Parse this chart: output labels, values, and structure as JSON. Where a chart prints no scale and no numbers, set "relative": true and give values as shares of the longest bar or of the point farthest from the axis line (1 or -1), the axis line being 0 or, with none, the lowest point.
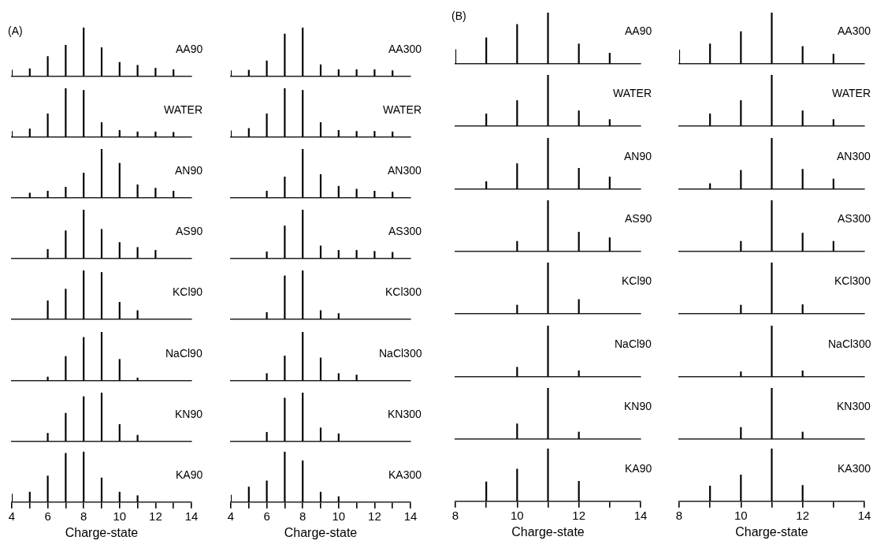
{
  "chart_data": [
    {
      "type": "bar",
      "x": [
        4,
        5,
        6,
        7,
        8,
        9,
        10,
        11,
        12,
        13
      ],
      "values": [
        0.13,
        0.16,
        0.41,
        0.64,
        1,
        0.59,
        0.29,
        0.23,
        0.17,
        0.14
      ],
      "color": "#000000",
      "relative": true,
      "xlim": [
        4,
        14
      ],
      "tick_labels": false,
      "annotations": [
        "AA90",
        "(A)"
      ]
    },
    {
      "type": "bar",
      "x": [
        4,
        5,
        6,
        7,
        8,
        9,
        10,
        11,
        12,
        13
      ],
      "values": [
        0.12,
        0.13,
        0.32,
        0.87,
        1,
        0.24,
        0.14,
        0.14,
        0.14,
        0.12
      ],
      "color": "#000000",
      "relative": true,
      "xlim": [
        4,
        14
      ],
      "tick_labels": false,
      "annotations": [
        "AA300"
      ]
    },
    {
      "type": "bar",
      "x": [
        8,
        9,
        10,
        11,
        12,
        13
      ],
      "values": [
        0.28,
        0.51,
        0.77,
        1,
        0.39,
        0.21
      ],
      "color": "#000000",
      "relative": true,
      "xlim": [
        8,
        14
      ],
      "tick_labels": false,
      "annotations": [
        "AA90",
        "(B)"
      ]
    },
    {
      "type": "bar",
      "x": [
        8,
        9,
        10,
        11,
        12,
        13
      ],
      "values": [
        0.27,
        0.39,
        0.63,
        1,
        0.34,
        0.19
      ],
      "color": "#000000",
      "relative": true,
      "xlim": [
        8,
        14
      ],
      "tick_labels": false,
      "annotations": [
        "AA300"
      ]
    },
    {
      "type": "bar",
      "x": [
        4,
        5,
        6,
        7,
        8,
        9,
        10,
        11,
        12,
        13
      ],
      "values": [
        0.12,
        0.17,
        0.48,
        1,
        0.96,
        0.3,
        0.14,
        0.11,
        0.11,
        0.1
      ],
      "color": "#000000",
      "relative": true,
      "xlim": [
        4,
        14
      ],
      "tick_labels": false,
      "annotations": [
        "WATER"
      ]
    },
    {
      "type": "bar",
      "x": [
        4,
        5,
        6,
        7,
        8,
        9,
        10,
        11,
        12,
        13
      ],
      "values": [
        0.13,
        0.18,
        0.48,
        1,
        0.96,
        0.3,
        0.14,
        0.12,
        0.12,
        0.11
      ],
      "color": "#000000",
      "relative": true,
      "xlim": [
        4,
        14
      ],
      "tick_labels": false,
      "annotations": [
        "WATER"
      ]
    },
    {
      "type": "bar",
      "x": [
        9,
        10,
        11,
        12,
        13
      ],
      "values": [
        0.24,
        0.5,
        1,
        0.3,
        0.13
      ],
      "color": "#000000",
      "relative": true,
      "xlim": [
        8,
        14
      ],
      "tick_labels": false,
      "annotations": [
        "WATER"
      ]
    },
    {
      "type": "bar",
      "x": [
        9,
        10,
        11,
        12,
        13
      ],
      "values": [
        0.24,
        0.5,
        1,
        0.3,
        0.13
      ],
      "color": "#000000",
      "relative": true,
      "xlim": [
        8,
        14
      ],
      "tick_labels": false,
      "annotations": [
        "WATER"
      ]
    },
    {
      "type": "bar",
      "x": [
        5,
        6,
        7,
        8,
        9,
        10,
        11,
        12,
        13
      ],
      "values": [
        0.1,
        0.14,
        0.22,
        0.51,
        1,
        0.71,
        0.27,
        0.2,
        0.14
      ],
      "color": "#000000",
      "relative": true,
      "xlim": [
        4,
        14
      ],
      "tick_labels": false,
      "annotations": [
        "AN90"
      ]
    },
    {
      "type": "bar",
      "x": [
        6,
        7,
        8,
        9,
        10,
        11,
        12,
        13
      ],
      "values": [
        0.14,
        0.43,
        1,
        0.48,
        0.24,
        0.18,
        0.14,
        0.12
      ],
      "color": "#000000",
      "relative": true,
      "xlim": [
        4,
        14
      ],
      "tick_labels": false,
      "annotations": [
        "AN300"
      ]
    },
    {
      "type": "bar",
      "x": [
        9,
        10,
        11,
        12,
        13
      ],
      "values": [
        0.15,
        0.5,
        1,
        0.41,
        0.24
      ],
      "color": "#000000",
      "relative": true,
      "xlim": [
        8,
        14
      ],
      "tick_labels": false,
      "annotations": [
        "AN90"
      ]
    },
    {
      "type": "bar",
      "x": [
        9,
        10,
        11,
        12,
        13
      ],
      "values": [
        0.11,
        0.37,
        1,
        0.39,
        0.2
      ],
      "color": "#000000",
      "relative": true,
      "xlim": [
        8,
        14
      ],
      "tick_labels": false,
      "annotations": [
        "AN300"
      ]
    },
    {
      "type": "bar",
      "x": [
        6,
        7,
        8,
        9,
        10,
        11,
        12
      ],
      "values": [
        0.19,
        0.57,
        1,
        0.6,
        0.33,
        0.23,
        0.17
      ],
      "color": "#000000",
      "relative": true,
      "xlim": [
        4,
        14
      ],
      "tick_labels": false,
      "annotations": [
        "AS90"
      ]
    },
    {
      "type": "bar",
      "x": [
        6,
        7,
        8,
        9,
        10,
        11,
        12,
        13
      ],
      "values": [
        0.14,
        0.67,
        1,
        0.26,
        0.17,
        0.17,
        0.15,
        0.13
      ],
      "color": "#000000",
      "relative": true,
      "xlim": [
        4,
        14
      ],
      "tick_labels": false,
      "annotations": [
        "AS300"
      ]
    },
    {
      "type": "bar",
      "x": [
        10,
        11,
        12,
        13
      ],
      "values": [
        0.2,
        1,
        0.38,
        0.27
      ],
      "color": "#000000",
      "relative": true,
      "xlim": [
        8,
        14
      ],
      "tick_labels": false,
      "annotations": [
        "AS90"
      ]
    },
    {
      "type": "bar",
      "x": [
        10,
        11,
        12,
        13
      ],
      "values": [
        0.2,
        1,
        0.36,
        0.2
      ],
      "color": "#000000",
      "relative": true,
      "xlim": [
        8,
        14
      ],
      "tick_labels": false,
      "annotations": [
        "AS300"
      ]
    },
    {
      "type": "bar",
      "x": [
        6,
        7,
        8,
        9,
        10,
        11
      ],
      "values": [
        0.38,
        0.62,
        1,
        0.96,
        0.35,
        0.18
      ],
      "color": "#000000",
      "relative": true,
      "xlim": [
        4,
        14
      ],
      "tick_labels": false,
      "annotations": [
        "KCl90"
      ]
    },
    {
      "type": "bar",
      "x": [
        6,
        7,
        8,
        9,
        10
      ],
      "values": [
        0.14,
        0.89,
        1,
        0.18,
        0.12
      ],
      "color": "#000000",
      "relative": true,
      "xlim": [
        4,
        14
      ],
      "tick_labels": false,
      "annotations": [
        "KCl300"
      ]
    },
    {
      "type": "bar",
      "x": [
        10,
        11,
        12
      ],
      "values": [
        0.17,
        1,
        0.28
      ],
      "color": "#000000",
      "relative": true,
      "xlim": [
        8,
        14
      ],
      "tick_labels": false,
      "annotations": [
        "KCl90"
      ]
    },
    {
      "type": "bar",
      "x": [
        10,
        11,
        12
      ],
      "values": [
        0.17,
        1,
        0.18
      ],
      "color": "#000000",
      "relative": true,
      "xlim": [
        8,
        14
      ],
      "tick_labels": false,
      "annotations": [
        "KCl300"
      ]
    },
    {
      "type": "bar",
      "x": [
        6,
        7,
        8,
        9,
        10,
        11
      ],
      "values": [
        0.08,
        0.5,
        0.89,
        1,
        0.44,
        0.06
      ],
      "color": "#000000",
      "relative": true,
      "xlim": [
        4,
        14
      ],
      "tick_labels": false,
      "annotations": [
        "NaCl90"
      ]
    },
    {
      "type": "bar",
      "x": [
        6,
        7,
        8,
        9,
        10,
        11
      ],
      "values": [
        0.15,
        0.51,
        1,
        0.47,
        0.15,
        0.12
      ],
      "color": "#000000",
      "relative": true,
      "xlim": [
        4,
        14
      ],
      "tick_labels": false,
      "annotations": [
        "NaCl300"
      ]
    },
    {
      "type": "bar",
      "x": [
        10,
        11,
        12
      ],
      "values": [
        0.19,
        1,
        0.12
      ],
      "color": "#000000",
      "relative": true,
      "xlim": [
        8,
        14
      ],
      "tick_labels": false,
      "annotations": [
        "NaCl90"
      ]
    },
    {
      "type": "bar",
      "x": [
        10,
        11,
        12
      ],
      "values": [
        0.1,
        1,
        0.12
      ],
      "color": "#000000",
      "relative": true,
      "xlim": [
        8,
        14
      ],
      "tick_labels": false,
      "annotations": [
        "NaCl300"
      ]
    },
    {
      "type": "bar",
      "x": [
        6,
        7,
        8,
        9,
        10,
        11
      ],
      "values": [
        0.17,
        0.58,
        0.92,
        1,
        0.35,
        0.13
      ],
      "color": "#000000",
      "relative": true,
      "xlim": [
        4,
        14
      ],
      "tick_labels": false,
      "annotations": [
        "KN90"
      ]
    },
    {
      "type": "bar",
      "x": [
        6,
        7,
        8,
        9,
        10
      ],
      "values": [
        0.19,
        0.89,
        1,
        0.28,
        0.16
      ],
      "color": "#000000",
      "relative": true,
      "xlim": [
        4,
        14
      ],
      "tick_labels": false,
      "annotations": [
        "KN300"
      ]
    },
    {
      "type": "bar",
      "x": [
        10,
        11,
        12
      ],
      "values": [
        0.3,
        1,
        0.14
      ],
      "color": "#000000",
      "relative": true,
      "xlim": [
        8,
        14
      ],
      "tick_labels": false,
      "annotations": [
        "KN90"
      ]
    },
    {
      "type": "bar",
      "x": [
        10,
        11,
        12
      ],
      "values": [
        0.23,
        1,
        0.14
      ],
      "color": "#000000",
      "relative": true,
      "xlim": [
        8,
        14
      ],
      "tick_labels": false,
      "annotations": [
        "KN300"
      ]
    },
    {
      "type": "bar",
      "x": [
        4,
        5,
        6,
        7,
        8,
        9,
        10,
        11
      ],
      "values": [
        0.16,
        0.2,
        0.52,
        0.97,
        1,
        0.48,
        0.2,
        0.13
      ],
      "color": "#000000",
      "relative": true,
      "xlim": [
        4,
        14
      ],
      "xticks": [
        4,
        {
          "value": 5,
          "label": null
        },
        6,
        {
          "value": 7,
          "label": null
        },
        8,
        {
          "value": 9,
          "label": null
        },
        10,
        {
          "value": 11,
          "label": null
        },
        12,
        {
          "value": 13,
          "label": null
        },
        14
      ],
      "tick_labels": "x",
      "xlabel": "Charge-state",
      "annotations": [
        "KA90"
      ]
    },
    {
      "type": "bar",
      "x": [
        4,
        5,
        6,
        7,
        8,
        9,
        10
      ],
      "values": [
        0.14,
        0.3,
        0.42,
        1,
        0.82,
        0.2,
        0.11
      ],
      "color": "#000000",
      "relative": true,
      "xlim": [
        4,
        14
      ],
      "xticks": [
        4,
        {
          "value": 5,
          "label": null
        },
        6,
        {
          "value": 7,
          "label": null
        },
        8,
        {
          "value": 9,
          "label": null
        },
        10,
        {
          "value": 11,
          "label": null
        },
        12,
        {
          "value": 13,
          "label": null
        },
        14
      ],
      "tick_labels": "x",
      "xlabel": "Charge-state",
      "annotations": [
        "KA300"
      ]
    },
    {
      "type": "bar",
      "x": [
        9,
        10,
        11,
        12
      ],
      "values": [
        0.37,
        0.61,
        1,
        0.38
      ],
      "color": "#000000",
      "relative": true,
      "xlim": [
        8,
        14
      ],
      "xticks": [
        8,
        {
          "value": 9,
          "label": null
        },
        10,
        {
          "value": 11,
          "label": null
        },
        12,
        {
          "value": 13,
          "label": null
        },
        14
      ],
      "tick_labels": "x",
      "xlabel": "Charge-state",
      "annotations": [
        "KA90"
      ]
    },
    {
      "type": "bar",
      "x": [
        9,
        10,
        11,
        12
      ],
      "values": [
        0.29,
        0.5,
        1,
        0.3
      ],
      "color": "#000000",
      "relative": true,
      "xlim": [
        8,
        14
      ],
      "xticks": [
        8,
        {
          "value": 9,
          "label": null
        },
        10,
        {
          "value": 11,
          "label": null
        },
        12,
        {
          "value": 13,
          "label": null
        },
        14
      ],
      "tick_labels": "x",
      "xlabel": "Charge-state",
      "annotations": [
        "KA300"
      ]
    }
  ]
}
